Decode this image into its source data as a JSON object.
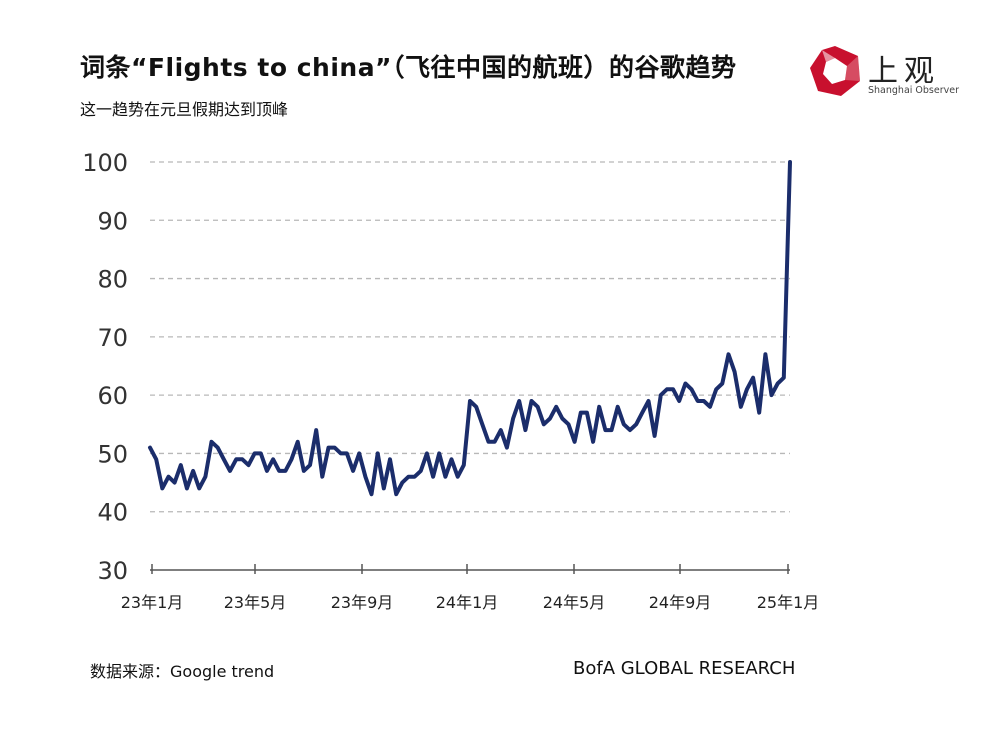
{
  "header": {
    "title": "词条“Flights to china”（飞往中国的航班）的谷歌趋势",
    "subtitle": "这一趋势在元旦假期达到顶峰"
  },
  "logo": {
    "name": "上观",
    "sub": "Shanghai Observer",
    "color": "#c8102e"
  },
  "footer": {
    "source": "数据来源：Google trend",
    "brand": "BofA GLOBAL RESEARCH"
  },
  "chart_data": {
    "type": "line",
    "title": "",
    "xlabel": "",
    "ylabel": "",
    "ylim": [
      30,
      100
    ],
    "yticks": [
      30,
      40,
      50,
      60,
      70,
      80,
      90,
      100
    ],
    "grid": "horizontal dashed",
    "line_color": "#1b2d6b",
    "xtick_labels": [
      "23年1月",
      "23年5月",
      "23年9月",
      "24年1月",
      "24年5月",
      "24年9月",
      "25年1月"
    ],
    "series": [
      {
        "values": [
          51,
          49,
          44,
          46,
          45,
          48,
          44,
          47,
          44,
          46,
          52,
          51,
          49,
          47,
          49,
          49,
          48,
          50,
          50,
          47,
          49,
          47,
          47,
          49,
          52,
          47,
          48,
          54,
          46,
          51,
          51,
          50,
          50,
          47,
          50,
          46,
          43,
          50,
          44,
          49,
          43,
          45,
          46,
          46,
          47,
          50,
          46,
          50,
          46,
          49,
          46,
          48,
          59,
          58,
          55,
          52,
          52,
          54,
          51,
          56,
          59,
          54,
          59,
          58,
          55,
          56,
          58,
          56,
          55,
          52,
          57,
          57,
          52,
          58,
          54,
          54,
          58,
          55,
          54,
          55,
          57,
          59,
          53,
          60,
          61,
          61,
          59,
          62,
          61,
          59,
          59,
          58,
          61,
          62,
          67,
          64,
          58,
          61,
          63,
          57,
          67,
          60,
          62,
          63,
          100
        ]
      }
    ]
  }
}
